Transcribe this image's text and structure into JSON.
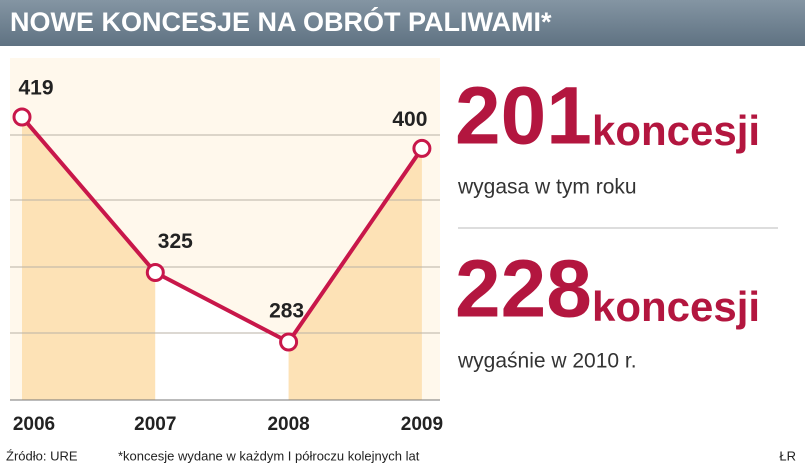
{
  "chart_data": {
    "type": "line",
    "title": "NOWE KONCESJE NA OBRÓT PALIWAMI*",
    "categories": [
      "2006",
      "2007",
      "2008",
      "2009"
    ],
    "values": [
      419,
      325,
      283,
      400
    ],
    "color": "#c8174a"
  },
  "stats": [
    {
      "value": 201,
      "unit": "koncesji",
      "note": "wygasa w tym roku"
    },
    {
      "value": 228,
      "unit": "koncesji",
      "note": "wygaśnie w 2010 r."
    }
  ],
  "footer": {
    "source": "Źródło: URE",
    "footnote": "*koncesje wydane w każdym I półroczu kolejnych lat",
    "author": "ŁR"
  }
}
